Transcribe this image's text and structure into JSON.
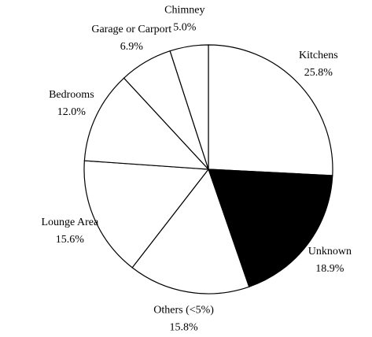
{
  "chart_data": {
    "type": "pie",
    "categories": [
      "Kitchens",
      "Unknown",
      "Others (<5%)",
      "Lounge Area",
      "Bedrooms",
      "Garage or Carport",
      "Chimney"
    ],
    "values": [
      25.8,
      18.9,
      15.8,
      15.6,
      12.0,
      6.9,
      5.0
    ],
    "value_labels": [
      "25.8%",
      "18.9%",
      "15.8%",
      "15.6%",
      "12.0%",
      "6.9%",
      "5.0%"
    ],
    "colors": [
      "#ffffff",
      "#000000",
      "#ffffff",
      "#ffffff",
      "#ffffff",
      "#ffffff",
      "#ffffff"
    ]
  }
}
